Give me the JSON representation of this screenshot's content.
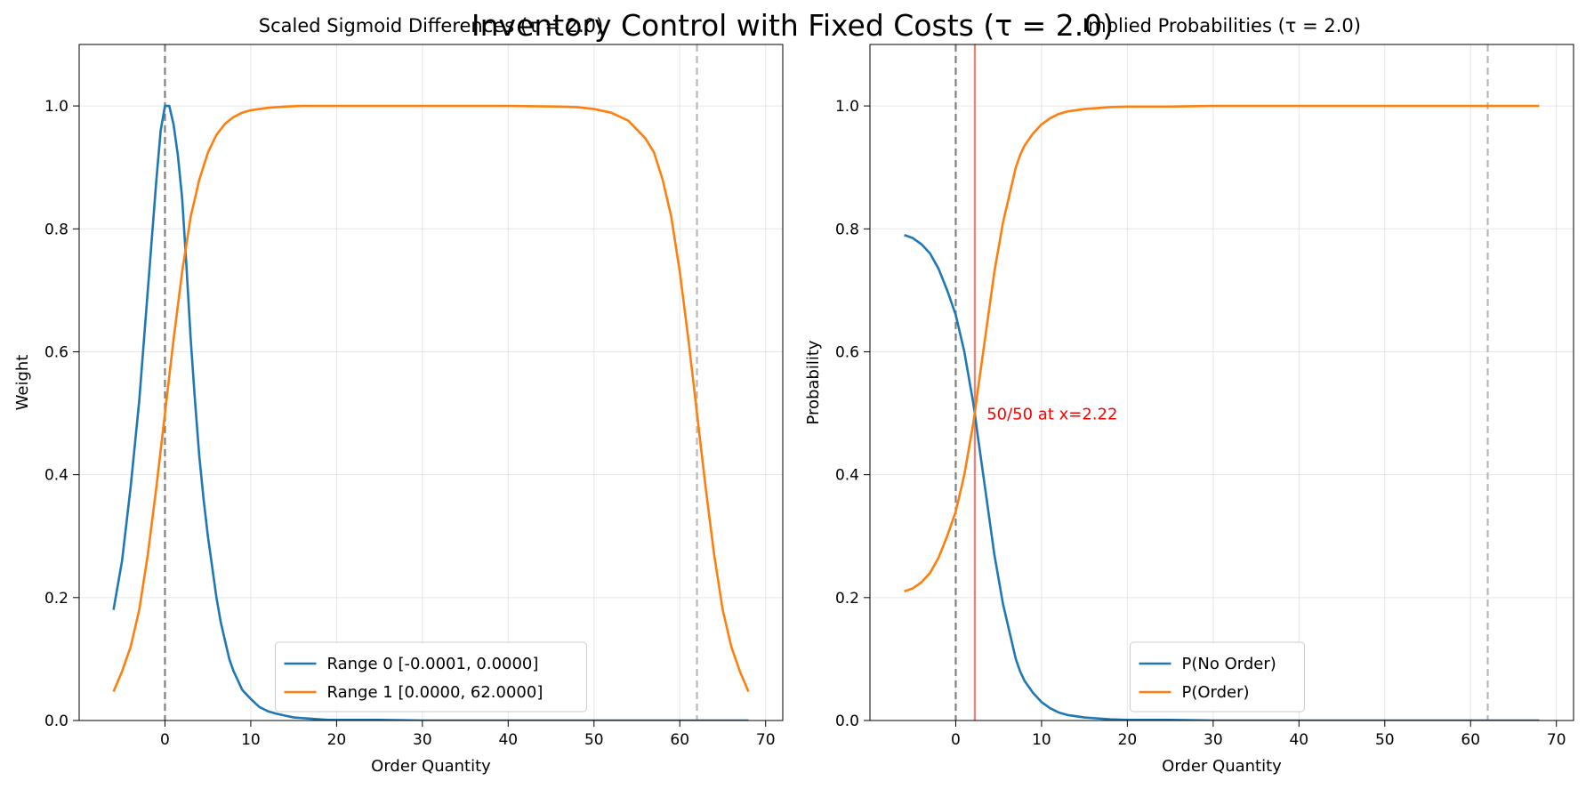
{
  "figure": {
    "suptitle": "Inventory Control with Fixed Costs (τ = 2.0)"
  },
  "colors": {
    "blue": "#1f77b4",
    "orange": "#ff7f0e",
    "grey_dashed": "#808080",
    "light_grey_dashed": "#b8b8b8",
    "crossing_line": "#f28072",
    "annotation": "#ff0000"
  },
  "chart_data": [
    {
      "type": "line",
      "title": "Scaled Sigmoid Differences (τ = 2.0)",
      "xlabel": "Order Quantity",
      "ylabel": "Weight",
      "xlim": [
        -10,
        72
      ],
      "ylim": [
        0,
        1.1
      ],
      "xticks": [
        0,
        10,
        20,
        30,
        40,
        50,
        60,
        70
      ],
      "yticks": [
        0.0,
        0.2,
        0.4,
        0.6,
        0.8,
        1.0
      ],
      "grid": true,
      "legend_position": "lower-center",
      "vlines": [
        {
          "x": 0,
          "style": "dashed",
          "color": "#808080"
        },
        {
          "x": 62,
          "style": "dashed",
          "color": "#b8b8b8"
        }
      ],
      "series": [
        {
          "name": "Range 0 [-0.0001, 0.0000]",
          "color": "#1f77b4",
          "points": [
            [
              -6,
              0.18
            ],
            [
              -5,
              0.26
            ],
            [
              -4,
              0.38
            ],
            [
              -3,
              0.52
            ],
            [
              -2,
              0.7
            ],
            [
              -1,
              0.88
            ],
            [
              -0.5,
              0.96
            ],
            [
              0,
              1.0
            ],
            [
              0.5,
              1.0
            ],
            [
              1,
              0.97
            ],
            [
              1.5,
              0.92
            ],
            [
              2,
              0.85
            ],
            [
              2.5,
              0.74
            ],
            [
              3,
              0.62
            ],
            [
              3.5,
              0.52
            ],
            [
              4,
              0.43
            ],
            [
              4.5,
              0.36
            ],
            [
              5,
              0.3
            ],
            [
              5.5,
              0.25
            ],
            [
              6,
              0.2
            ],
            [
              6.5,
              0.16
            ],
            [
              7,
              0.13
            ],
            [
              7.5,
              0.1
            ],
            [
              8,
              0.08
            ],
            [
              8.5,
              0.065
            ],
            [
              9,
              0.05
            ],
            [
              10,
              0.035
            ],
            [
              11,
              0.022
            ],
            [
              12,
              0.015
            ],
            [
              13,
              0.011
            ],
            [
              14,
              0.008
            ],
            [
              15,
              0.005
            ],
            [
              16,
              0.004
            ],
            [
              17,
              0.003
            ],
            [
              18,
              0.002
            ],
            [
              19,
              0.001
            ],
            [
              20,
              0.001
            ],
            [
              25,
              0.001
            ],
            [
              30,
              0.0
            ],
            [
              40,
              0.0
            ],
            [
              50,
              0.0
            ],
            [
              60,
              0.0
            ],
            [
              68,
              0.0
            ]
          ]
        },
        {
          "name": "Range 1 [0.0000, 62.0000]",
          "color": "#ff7f0e",
          "points": [
            [
              -6,
              0.047
            ],
            [
              -5,
              0.08
            ],
            [
              -4,
              0.12
            ],
            [
              -3,
              0.18
            ],
            [
              -2,
              0.27
            ],
            [
              -1,
              0.38
            ],
            [
              0,
              0.5
            ],
            [
              1,
              0.62
            ],
            [
              2,
              0.73
            ],
            [
              3,
              0.82
            ],
            [
              4,
              0.88
            ],
            [
              5,
              0.924
            ],
            [
              6,
              0.953
            ],
            [
              7,
              0.971
            ],
            [
              8,
              0.982
            ],
            [
              9,
              0.989
            ],
            [
              10,
              0.993
            ],
            [
              12,
              0.997
            ],
            [
              14,
              0.999
            ],
            [
              16,
              1.0
            ],
            [
              20,
              1.0
            ],
            [
              30,
              1.0
            ],
            [
              40,
              1.0
            ],
            [
              46,
              0.999
            ],
            [
              48,
              0.998
            ],
            [
              50,
              0.995
            ],
            [
              52,
              0.989
            ],
            [
              54,
              0.976
            ],
            [
              56,
              0.947
            ],
            [
              57,
              0.924
            ],
            [
              58,
              0.88
            ],
            [
              59,
              0.82
            ],
            [
              60,
              0.73
            ],
            [
              61,
              0.62
            ],
            [
              62,
              0.5
            ],
            [
              63,
              0.38
            ],
            [
              64,
              0.27
            ],
            [
              65,
              0.18
            ],
            [
              66,
              0.12
            ],
            [
              67,
              0.08
            ],
            [
              68,
              0.047
            ]
          ]
        }
      ]
    },
    {
      "type": "line",
      "title": "Implied Probabilities (τ = 2.0)",
      "xlabel": "Order Quantity",
      "ylabel": "Probability",
      "xlim": [
        -10,
        72
      ],
      "ylim": [
        0,
        1.1
      ],
      "xticks": [
        0,
        10,
        20,
        30,
        40,
        50,
        60,
        70
      ],
      "yticks": [
        0.0,
        0.2,
        0.4,
        0.6,
        0.8,
        1.0
      ],
      "grid": true,
      "legend_position": "lower-center",
      "vlines": [
        {
          "x": 0,
          "style": "dashed",
          "color": "#808080"
        },
        {
          "x": 62,
          "style": "dashed",
          "color": "#b8b8b8"
        },
        {
          "x": 2.22,
          "style": "solid",
          "color": "#f28072"
        }
      ],
      "annotation": {
        "text": "50/50 at x=2.22",
        "x": 3.6,
        "y": 0.5
      },
      "series": [
        {
          "name": "P(No Order)",
          "color": "#1f77b4",
          "points": [
            [
              -6,
              0.79
            ],
            [
              -5,
              0.785
            ],
            [
              -4,
              0.775
            ],
            [
              -3,
              0.76
            ],
            [
              -2,
              0.735
            ],
            [
              -1,
              0.7
            ],
            [
              0,
              0.66
            ],
            [
              0.5,
              0.63
            ],
            [
              1,
              0.6
            ],
            [
              1.5,
              0.56
            ],
            [
              2,
              0.52
            ],
            [
              2.22,
              0.5
            ],
            [
              2.5,
              0.47
            ],
            [
              3,
              0.42
            ],
            [
              3.5,
              0.37
            ],
            [
              4,
              0.32
            ],
            [
              4.5,
              0.27
            ],
            [
              5,
              0.23
            ],
            [
              5.5,
              0.19
            ],
            [
              6,
              0.16
            ],
            [
              6.5,
              0.13
            ],
            [
              7,
              0.1
            ],
            [
              7.5,
              0.08
            ],
            [
              8,
              0.065
            ],
            [
              9,
              0.045
            ],
            [
              10,
              0.03
            ],
            [
              11,
              0.02
            ],
            [
              12,
              0.013
            ],
            [
              13,
              0.009
            ],
            [
              14,
              0.007
            ],
            [
              15,
              0.005
            ],
            [
              16,
              0.004
            ],
            [
              18,
              0.002
            ],
            [
              20,
              0.001
            ],
            [
              25,
              0.001
            ],
            [
              30,
              0.0
            ],
            [
              40,
              0.0
            ],
            [
              50,
              0.0
            ],
            [
              60,
              0.0
            ],
            [
              68,
              0.0
            ]
          ]
        },
        {
          "name": "P(Order)",
          "color": "#ff7f0e",
          "points": [
            [
              -6,
              0.21
            ],
            [
              -5,
              0.215
            ],
            [
              -4,
              0.225
            ],
            [
              -3,
              0.24
            ],
            [
              -2,
              0.265
            ],
            [
              -1,
              0.3
            ],
            [
              0,
              0.34
            ],
            [
              0.5,
              0.37
            ],
            [
              1,
              0.4
            ],
            [
              1.5,
              0.44
            ],
            [
              2,
              0.48
            ],
            [
              2.22,
              0.5
            ],
            [
              2.5,
              0.53
            ],
            [
              3,
              0.58
            ],
            [
              3.5,
              0.63
            ],
            [
              4,
              0.68
            ],
            [
              4.5,
              0.73
            ],
            [
              5,
              0.77
            ],
            [
              5.5,
              0.81
            ],
            [
              6,
              0.84
            ],
            [
              6.5,
              0.87
            ],
            [
              7,
              0.9
            ],
            [
              7.5,
              0.92
            ],
            [
              8,
              0.935
            ],
            [
              9,
              0.955
            ],
            [
              10,
              0.97
            ],
            [
              11,
              0.98
            ],
            [
              12,
              0.987
            ],
            [
              13,
              0.991
            ],
            [
              14,
              0.993
            ],
            [
              15,
              0.995
            ],
            [
              16,
              0.996
            ],
            [
              18,
              0.998
            ],
            [
              20,
              0.999
            ],
            [
              25,
              0.999
            ],
            [
              30,
              1.0
            ],
            [
              40,
              1.0
            ],
            [
              50,
              1.0
            ],
            [
              60,
              1.0
            ],
            [
              68,
              1.0
            ]
          ]
        }
      ]
    }
  ]
}
